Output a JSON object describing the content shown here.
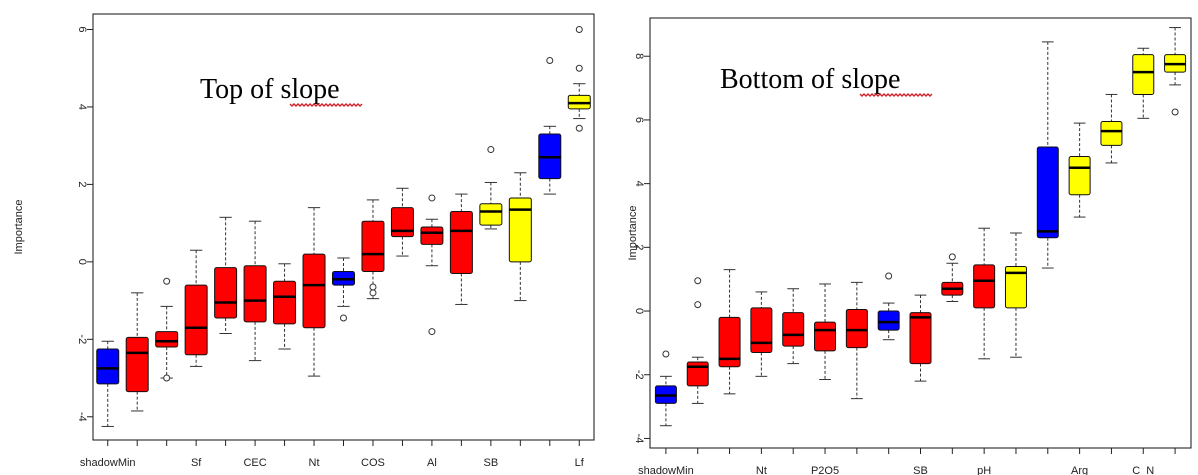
{
  "colors": {
    "blue": "#0000ff",
    "red": "#ff0000",
    "yellow": "#ffff00"
  },
  "chart_data": [
    {
      "type": "box",
      "title": "",
      "annotation": "Top of slope",
      "ylabel": "Importance",
      "ylim": [
        -4.6,
        6.4
      ],
      "yticks": [
        -4,
        -2,
        0,
        2,
        4,
        6
      ],
      "ytick_labels": [
        "-4",
        "-2",
        "0",
        "2",
        "4",
        "6"
      ],
      "boxes": [
        {
          "label": "shadowMin",
          "color": "blue",
          "whislo": -4.25,
          "q1": -3.15,
          "med": -2.75,
          "q3": -2.25,
          "whishi": -2.05,
          "fliers": []
        },
        {
          "label": "",
          "color": "red",
          "whislo": -3.85,
          "q1": -3.35,
          "med": -2.35,
          "q3": -1.95,
          "whishi": -0.8,
          "fliers": []
        },
        {
          "label": "",
          "color": "red",
          "whislo": -3.0,
          "q1": -2.2,
          "med": -2.05,
          "q3": -1.8,
          "whishi": -1.15,
          "fliers": [
            -0.5,
            -3.0
          ]
        },
        {
          "label": "Sf",
          "color": "red",
          "whislo": -2.7,
          "q1": -2.4,
          "med": -1.7,
          "q3": -0.6,
          "whishi": 0.3,
          "fliers": []
        },
        {
          "label": "",
          "color": "red",
          "whislo": -1.85,
          "q1": -1.45,
          "med": -1.05,
          "q3": -0.15,
          "whishi": 1.15,
          "fliers": []
        },
        {
          "label": "CEC",
          "color": "red",
          "whislo": -2.55,
          "q1": -1.55,
          "med": -1.0,
          "q3": -0.1,
          "whishi": 1.05,
          "fliers": []
        },
        {
          "label": "",
          "color": "red",
          "whislo": -2.25,
          "q1": -1.6,
          "med": -0.9,
          "q3": -0.5,
          "whishi": -0.05,
          "fliers": []
        },
        {
          "label": "Nt",
          "color": "red",
          "whislo": -2.95,
          "q1": -1.7,
          "med": -0.6,
          "q3": 0.2,
          "whishi": 1.4,
          "fliers": []
        },
        {
          "label": "",
          "color": "blue",
          "whislo": -1.15,
          "q1": -0.6,
          "med": -0.45,
          "q3": -0.25,
          "whishi": 0.1,
          "fliers": [
            -1.45
          ]
        },
        {
          "label": "COS",
          "color": "red",
          "whislo": -0.95,
          "q1": -0.25,
          "med": 0.2,
          "q3": 1.05,
          "whishi": 1.6,
          "fliers": [
            -0.65,
            -0.8
          ]
        },
        {
          "label": "",
          "color": "red",
          "whislo": 0.15,
          "q1": 0.65,
          "med": 0.8,
          "q3": 1.4,
          "whishi": 1.9,
          "fliers": []
        },
        {
          "label": "Al",
          "color": "red",
          "whislo": -0.1,
          "q1": 0.45,
          "med": 0.75,
          "q3": 0.9,
          "whishi": 1.1,
          "fliers": [
            1.65,
            -1.8
          ]
        },
        {
          "label": "",
          "color": "red",
          "whislo": -1.1,
          "q1": -0.3,
          "med": 0.8,
          "q3": 1.3,
          "whishi": 1.75,
          "fliers": []
        },
        {
          "label": "SB",
          "color": "yellow",
          "whislo": 0.85,
          "q1": 0.95,
          "med": 1.3,
          "q3": 1.5,
          "whishi": 2.05,
          "fliers": [
            2.9
          ]
        },
        {
          "label": "",
          "color": "yellow",
          "whislo": -1.0,
          "q1": 0.0,
          "med": 1.35,
          "q3": 1.65,
          "whishi": 2.3,
          "fliers": []
        },
        {
          "label": "",
          "color": "blue",
          "whislo": 1.75,
          "q1": 2.15,
          "med": 2.7,
          "q3": 3.3,
          "whishi": 3.5,
          "fliers": [
            5.2
          ]
        },
        {
          "label": "Lf",
          "color": "yellow",
          "whislo": 3.7,
          "q1": 3.95,
          "med": 4.1,
          "q3": 4.3,
          "whishi": 4.6,
          "fliers": [
            6.0,
            5.0,
            3.45
          ]
        }
      ]
    },
    {
      "type": "box",
      "title": "",
      "annotation": "Bottom of slope",
      "ylabel": "Importance",
      "ylim": [
        -4.3,
        9.2
      ],
      "yticks": [
        -4,
        -2,
        0,
        2,
        4,
        6,
        8
      ],
      "ytick_labels": [
        "-4",
        "-2",
        "0",
        "2",
        "4",
        "6",
        "8"
      ],
      "boxes": [
        {
          "label": "shadowMin",
          "color": "blue",
          "whislo": -3.6,
          "q1": -2.9,
          "med": -2.65,
          "q3": -2.35,
          "whishi": -2.05,
          "fliers": [
            -1.35
          ]
        },
        {
          "label": "",
          "color": "red",
          "whislo": -2.9,
          "q1": -2.35,
          "med": -1.75,
          "q3": -1.6,
          "whishi": -1.45,
          "fliers": [
            0.95,
            0.2
          ]
        },
        {
          "label": "",
          "color": "red",
          "whislo": -2.6,
          "q1": -1.75,
          "med": -1.5,
          "q3": -0.2,
          "whishi": 1.3,
          "fliers": []
        },
        {
          "label": "Nt",
          "color": "red",
          "whislo": -2.05,
          "q1": -1.3,
          "med": -1.0,
          "q3": 0.1,
          "whishi": 0.6,
          "fliers": []
        },
        {
          "label": "",
          "color": "red",
          "whislo": -1.65,
          "q1": -1.1,
          "med": -0.75,
          "q3": -0.05,
          "whishi": 0.7,
          "fliers": []
        },
        {
          "label": "P2O5",
          "color": "red",
          "whislo": -2.15,
          "q1": -1.25,
          "med": -0.6,
          "q3": -0.35,
          "whishi": 0.85,
          "fliers": []
        },
        {
          "label": "",
          "color": "red",
          "whislo": -2.75,
          "q1": -1.15,
          "med": -0.6,
          "q3": 0.05,
          "whishi": 0.9,
          "fliers": []
        },
        {
          "label": "",
          "color": "blue",
          "whislo": -0.9,
          "q1": -0.6,
          "med": -0.35,
          "q3": 0.0,
          "whishi": 0.25,
          "fliers": [
            1.1
          ]
        },
        {
          "label": "SB",
          "color": "red",
          "whislo": -2.2,
          "q1": -1.65,
          "med": -0.2,
          "q3": -0.05,
          "whishi": 0.5,
          "fliers": []
        },
        {
          "label": "",
          "color": "red",
          "whislo": 0.3,
          "q1": 0.5,
          "med": 0.7,
          "q3": 0.9,
          "whishi": 1.5,
          "fliers": [
            1.7
          ]
        },
        {
          "label": "pH",
          "color": "red",
          "whislo": -1.5,
          "q1": 0.1,
          "med": 0.95,
          "q3": 1.45,
          "whishi": 2.6,
          "fliers": []
        },
        {
          "label": "",
          "color": "yellow",
          "whislo": -1.45,
          "q1": 0.1,
          "med": 1.2,
          "q3": 1.4,
          "whishi": 2.45,
          "fliers": []
        },
        {
          "label": "",
          "color": "blue",
          "whislo": 1.35,
          "q1": 2.3,
          "med": 2.5,
          "q3": 5.15,
          "whishi": 8.45,
          "fliers": []
        },
        {
          "label": "Arg",
          "color": "yellow",
          "whislo": 2.95,
          "q1": 3.65,
          "med": 4.5,
          "q3": 4.85,
          "whishi": 5.9,
          "fliers": []
        },
        {
          "label": "",
          "color": "yellow",
          "whislo": 4.65,
          "q1": 5.2,
          "med": 5.65,
          "q3": 5.95,
          "whishi": 6.8,
          "fliers": []
        },
        {
          "label": "C_N",
          "color": "yellow",
          "whislo": 6.05,
          "q1": 6.8,
          "med": 7.5,
          "q3": 8.05,
          "whishi": 8.25,
          "fliers": []
        },
        {
          "label": "",
          "color": "yellow",
          "whislo": 7.1,
          "q1": 7.5,
          "med": 7.75,
          "q3": 8.05,
          "whishi": 8.9,
          "fliers": [
            6.25
          ]
        }
      ]
    }
  ]
}
